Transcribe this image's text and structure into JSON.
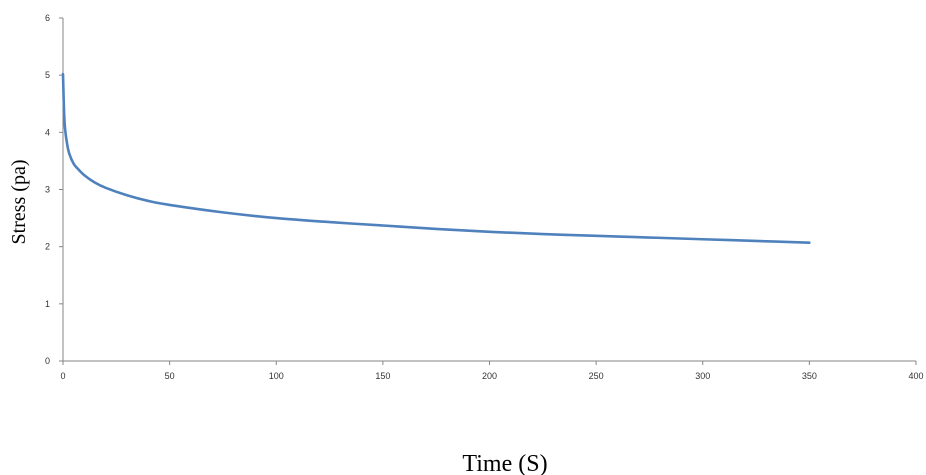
{
  "chart_data": {
    "type": "line",
    "title": "",
    "xlabel": "Time (S)",
    "ylabel": "Stress (pa)",
    "xlim": [
      0,
      400
    ],
    "ylim": [
      0,
      6
    ],
    "xticks": [
      "0",
      "50",
      "100",
      "150",
      "200",
      "250",
      "300",
      "350",
      "400"
    ],
    "yticks": [
      "0",
      "1",
      "2",
      "3",
      "4",
      "5",
      "6"
    ],
    "grid": false,
    "legend": "none",
    "series": [
      {
        "color": "#4f81bd",
        "x": [
          0,
          0.5,
          1,
          2,
          3,
          5,
          7,
          10,
          15,
          20,
          30,
          40,
          50,
          75,
          100,
          125,
          150,
          175,
          200,
          225,
          250,
          275,
          300,
          325,
          350
        ],
        "y": [
          5.02,
          4.35,
          4.05,
          3.78,
          3.62,
          3.45,
          3.36,
          3.25,
          3.12,
          3.03,
          2.9,
          2.8,
          2.73,
          2.6,
          2.5,
          2.43,
          2.37,
          2.31,
          2.26,
          2.22,
          2.19,
          2.16,
          2.13,
          2.1,
          2.07
        ]
      }
    ]
  }
}
